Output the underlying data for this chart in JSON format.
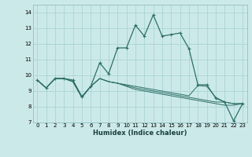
{
  "xlabel": "Humidex (Indice chaleur)",
  "bg_color": "#cce9e9",
  "grid_color": "#aad4d4",
  "line_color": "#2d7068",
  "xlim": [
    -0.5,
    23.5
  ],
  "ylim": [
    7.0,
    14.5
  ],
  "xticks": [
    0,
    1,
    2,
    3,
    4,
    5,
    6,
    7,
    8,
    9,
    10,
    11,
    12,
    13,
    14,
    15,
    16,
    17,
    18,
    19,
    20,
    21,
    22,
    23
  ],
  "yticks": [
    7,
    8,
    9,
    10,
    11,
    12,
    13,
    14
  ],
  "main_line": [
    9.7,
    9.2,
    9.8,
    9.8,
    9.7,
    8.65,
    9.3,
    10.8,
    10.1,
    11.75,
    11.75,
    13.2,
    12.5,
    13.85,
    12.5,
    12.6,
    12.7,
    11.7,
    9.4,
    9.4,
    8.55,
    8.3,
    7.1,
    8.2
  ],
  "other_lines": [
    [
      9.7,
      9.2,
      9.8,
      9.8,
      9.6,
      8.6,
      9.3,
      9.8,
      9.6,
      9.5,
      9.4,
      9.3,
      9.2,
      9.1,
      9.0,
      8.9,
      8.8,
      8.7,
      9.35,
      9.3,
      8.6,
      8.3,
      8.2,
      8.2
    ],
    [
      9.7,
      9.2,
      9.8,
      9.8,
      9.6,
      8.6,
      9.3,
      9.8,
      9.6,
      9.5,
      9.35,
      9.2,
      9.1,
      9.0,
      8.9,
      8.8,
      8.7,
      8.6,
      8.5,
      8.4,
      8.3,
      8.3,
      8.2,
      8.2
    ],
    [
      9.7,
      9.2,
      9.8,
      9.8,
      9.6,
      8.6,
      9.3,
      9.8,
      9.6,
      9.5,
      9.3,
      9.1,
      9.0,
      8.9,
      8.8,
      8.7,
      8.6,
      8.5,
      8.4,
      8.3,
      8.2,
      8.1,
      8.1,
      8.2
    ]
  ]
}
